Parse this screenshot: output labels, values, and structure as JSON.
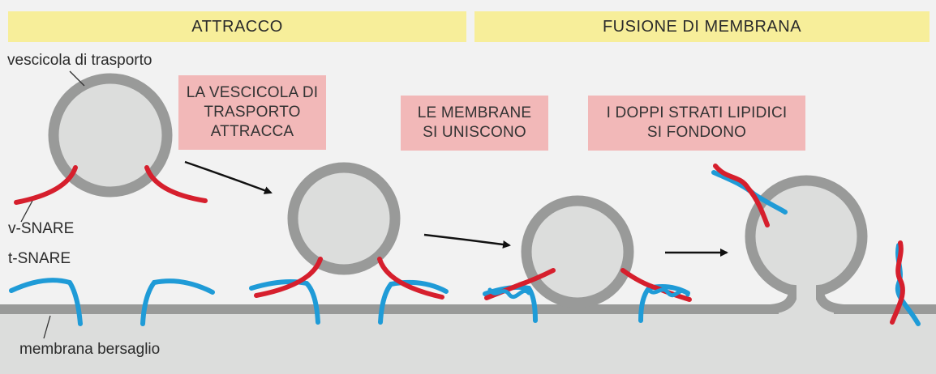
{
  "headers": {
    "left": "ATTRACCO",
    "right": "FUSIONE DI MEMBRANA"
  },
  "labels": {
    "vesicle": "vescicola di trasporto",
    "v_snare": "v-SNARE",
    "t_snare": "t-SNARE",
    "membrane": "membrana bersaglio"
  },
  "steps": [
    "LA VESCICOLA DI TRASPORTO ATTRACCA",
    "LE MEMBRANE SI UNISCONO",
    "I DOPPI STRATI LIPIDICI SI FONDONO"
  ],
  "colors": {
    "banner": "#f7ee9a",
    "step_box": "#f2b8b8",
    "membrane": "#999a99",
    "vesicle_fill": "#dcdddc",
    "v_snare": "#d61f2d",
    "t_snare": "#1f9bd7"
  }
}
